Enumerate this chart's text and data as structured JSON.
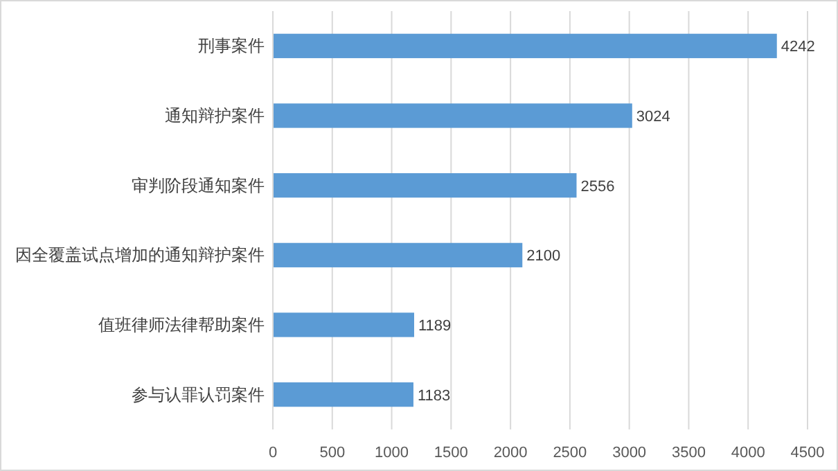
{
  "chart_data": {
    "type": "bar",
    "orientation": "horizontal",
    "categories": [
      "刑事案件",
      "通知辩护案件",
      "审判阶段通知案件",
      "因全覆盖试点增加的通知辩护案件",
      "值班律师法律帮助案件",
      "参与认罪认罚案件"
    ],
    "values": [
      4242,
      3024,
      2556,
      2100,
      1189,
      1183
    ],
    "color": "#5b9bd5",
    "data_labels": true,
    "xlim": [
      0,
      4500
    ],
    "xticks": [
      0,
      500,
      1000,
      1500,
      2000,
      2500,
      3000,
      3500,
      4000,
      4500
    ],
    "grid": "x"
  }
}
